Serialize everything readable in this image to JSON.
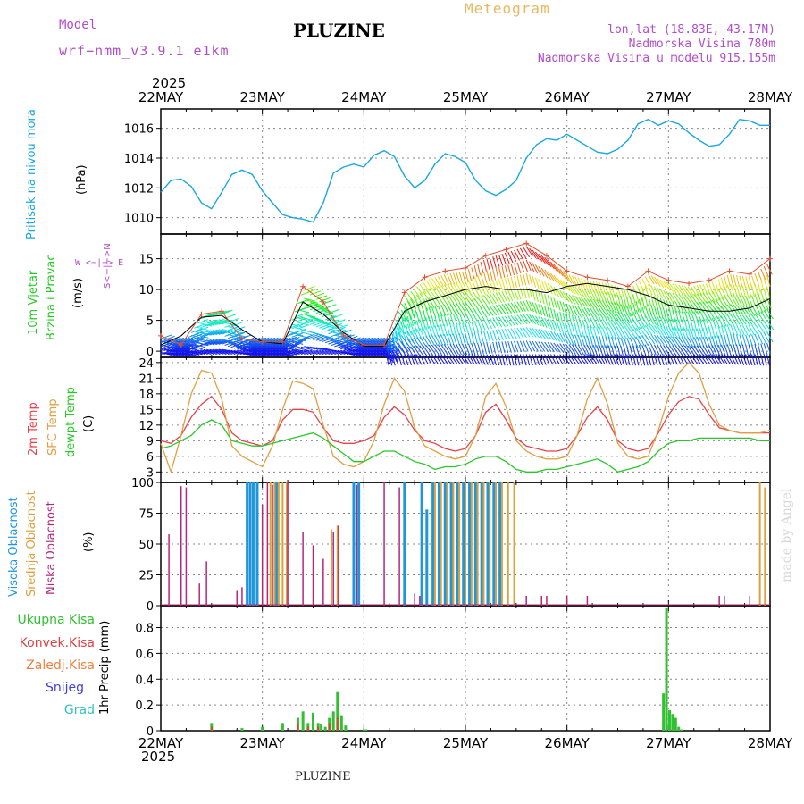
{
  "header": {
    "model_label": "Model",
    "model_name": "wrf−nmm_v3.9.1  e1km",
    "title": "PLUZINE",
    "meteogram_label": "Meteogram",
    "location": "lon,lat (18.83E, 43.17N)",
    "elevation": "Nadmorska Visina 780m",
    "model_elevation": "Nadmorska Visina u modelu 915.155m"
  },
  "axis": {
    "year_top": "2025",
    "year_bottom": "2025",
    "dates": [
      "22MAY",
      "23MAY",
      "24MAY",
      "25MAY",
      "26MAY",
      "27MAY",
      "28MAY"
    ]
  },
  "panels": {
    "pressure": {
      "label": "Pritisak na nivou mora",
      "unit": "(hPa)",
      "color": "#19a7e0"
    },
    "wind": {
      "label1": "10m Vjetar",
      "label2": "Brzina i Pravac",
      "unit": "(m/s)",
      "compass": "W <−|−> E",
      "compass2": "S<−|−>N"
    },
    "temp": {
      "label_2m": "2m Temp",
      "label_sfc": "SFC Temp",
      "label_dew": "dewpt Temp",
      "unit": "(C)"
    },
    "cloud": {
      "label_high": "Visoka Oblacnost",
      "label_mid": "Srednja Oblacnost",
      "label_low": "Niska Oblacnost",
      "unit": "(%)"
    },
    "precip": {
      "legend": [
        "Ukupna Kisa",
        "Konvek.Kisa",
        "Zaledj.Kisa",
        "Snijeg",
        "Grad"
      ],
      "unit": "1hr Precip (mm)"
    }
  },
  "footer": "PLUZINE",
  "made_by": "made by Angel",
  "colors": {
    "pressure": "#19a7e0",
    "temp_2m": "#e8404a",
    "temp_sfc": "#e0a040",
    "temp_dew": "#28c828",
    "cloud_high": "#1e96dc",
    "cloud_mid": "#dca03c",
    "cloud_low": "#b4287c",
    "precip_total": "#30c030",
    "precip_conv": "#e04040",
    "precip_frz": "#f08040",
    "snow": "#4040e0",
    "hail": "#30c0c0"
  },
  "chart_data": [
    {
      "type": "line",
      "name_panel": "pressure",
      "ylabel": "Pritisak na nivou mora (hPa)",
      "ylim": [
        1008.9,
        1017.3
      ],
      "yticks": [
        1010,
        1012,
        1014,
        1016
      ],
      "x_days": [
        0,
        0.1,
        0.2,
        0.3,
        0.4,
        0.5,
        0.6,
        0.7,
        0.8,
        0.9,
        1.0,
        1.1,
        1.2,
        1.3,
        1.4,
        1.5,
        1.6,
        1.7,
        1.8,
        1.9,
        2.0,
        2.1,
        2.2,
        2.3,
        2.4,
        2.5,
        2.6,
        2.7,
        2.8,
        2.9,
        3.0,
        3.1,
        3.2,
        3.3,
        3.4,
        3.5,
        3.6,
        3.7,
        3.8,
        3.9,
        4.0,
        4.1,
        4.2,
        4.3,
        4.4,
        4.5,
        4.6,
        4.7,
        4.8,
        4.9,
        5.0,
        5.1,
        5.2,
        5.3,
        5.4,
        5.5,
        5.6,
        5.7,
        5.8,
        5.9,
        6.0
      ],
      "values": [
        1011.7,
        1012.5,
        1012.6,
        1012.1,
        1011.0,
        1010.6,
        1011.7,
        1012.9,
        1013.2,
        1012.9,
        1011.8,
        1011.0,
        1010.2,
        1010.0,
        1009.9,
        1009.7,
        1011.0,
        1013.0,
        1013.4,
        1013.6,
        1013.4,
        1014.2,
        1014.5,
        1014.1,
        1012.8,
        1012.0,
        1012.5,
        1013.6,
        1014.3,
        1014.1,
        1013.7,
        1012.5,
        1011.8,
        1011.5,
        1011.9,
        1012.5,
        1014.0,
        1014.9,
        1015.3,
        1015.2,
        1015.6,
        1015.2,
        1014.8,
        1014.4,
        1014.3,
        1014.6,
        1015.2,
        1016.3,
        1016.6,
        1016.2,
        1016.5,
        1016.3,
        1015.7,
        1015.2,
        1014.8,
        1014.9,
        1015.6,
        1016.6,
        1016.5,
        1016.2,
        1016.2
      ]
    },
    {
      "type": "line",
      "name_panel": "wind",
      "ylabel": "10m Vjetar Brzina i Pravac (m/s)",
      "ylim": [
        -1,
        19
      ],
      "yticks": [
        0,
        5,
        10,
        15
      ],
      "x_days": [
        0,
        0.2,
        0.4,
        0.6,
        0.8,
        1.0,
        1.2,
        1.4,
        1.6,
        1.8,
        2.0,
        2.2,
        2.4,
        2.6,
        2.8,
        3.0,
        3.2,
        3.4,
        3.6,
        3.8,
        4.0,
        4.2,
        4.4,
        4.6,
        4.8,
        5.0,
        5.2,
        5.4,
        5.6,
        5.8,
        6.0
      ],
      "speed": [
        1.0,
        2.5,
        5.5,
        5.8,
        3.5,
        1.5,
        1.2,
        8.0,
        6.0,
        3.0,
        0.8,
        0.8,
        6.5,
        8.0,
        9.0,
        10.0,
        10.5,
        10.0,
        10.0,
        9.5,
        10.5,
        11.0,
        10.5,
        10.0,
        9.0,
        7.5,
        7.0,
        6.5,
        6.5,
        7.0,
        8.5
      ],
      "gust": [
        2.5,
        1.0,
        6.0,
        6.5,
        2.0,
        1.5,
        1.5,
        10.5,
        8.0,
        2.5,
        1.0,
        1.0,
        9.5,
        12.0,
        13.0,
        13.5,
        15.5,
        16.5,
        17.5,
        15.5,
        13.0,
        12.0,
        11.5,
        10.5,
        13.0,
        11.5,
        11.0,
        11.5,
        13.0,
        12.5,
        15.0
      ]
    },
    {
      "type": "line",
      "name_panel": "temp",
      "ylabel": "Temp (C)",
      "ylim": [
        1,
        25
      ],
      "yticks": [
        3,
        6,
        9,
        12,
        15,
        18,
        21,
        24
      ],
      "x_days": [
        0,
        0.1,
        0.2,
        0.3,
        0.4,
        0.5,
        0.6,
        0.7,
        0.8,
        0.9,
        1.0,
        1.1,
        1.2,
        1.3,
        1.4,
        1.5,
        1.6,
        1.7,
        1.8,
        1.9,
        2.0,
        2.1,
        2.2,
        2.3,
        2.4,
        2.5,
        2.6,
        2.7,
        2.8,
        2.9,
        3.0,
        3.1,
        3.2,
        3.3,
        3.4,
        3.5,
        3.6,
        3.7,
        3.8,
        3.9,
        4.0,
        4.1,
        4.2,
        4.3,
        4.4,
        4.5,
        4.6,
        4.7,
        4.8,
        4.9,
        5.0,
        5.1,
        5.2,
        5.3,
        5.4,
        5.5,
        5.6,
        5.7,
        5.8,
        5.9,
        6.0
      ],
      "series": [
        {
          "name": "2m Temp",
          "values": [
            9.0,
            8.5,
            10.0,
            13.5,
            16.0,
            17.5,
            15.0,
            10.5,
            9.0,
            8.5,
            8.0,
            9.0,
            13.0,
            15.0,
            15.0,
            14.5,
            11.5,
            9.0,
            8.5,
            8.5,
            9.0,
            10.0,
            13.5,
            15.5,
            14.0,
            11.0,
            9.0,
            8.5,
            7.5,
            7.0,
            7.5,
            10.0,
            14.5,
            16.0,
            13.0,
            9.5,
            8.0,
            7.5,
            7.0,
            7.0,
            7.5,
            10.0,
            13.5,
            15.5,
            13.0,
            9.0,
            7.5,
            7.0,
            7.5,
            10.5,
            14.0,
            16.5,
            17.5,
            17.0,
            14.0,
            11.5,
            11.0,
            10.5,
            10.5,
            10.5,
            10.5
          ]
        },
        {
          "name": "SFC Temp",
          "values": [
            8.5,
            3.0,
            10.0,
            18.0,
            22.5,
            22.0,
            17.0,
            8.0,
            6.0,
            5.0,
            4.0,
            8.0,
            15.0,
            20.5,
            20.0,
            19.0,
            12.0,
            6.0,
            4.5,
            4.0,
            5.0,
            9.0,
            16.0,
            21.0,
            18.5,
            11.5,
            8.0,
            7.0,
            6.0,
            5.5,
            6.0,
            10.0,
            17.5,
            20.0,
            15.5,
            9.0,
            7.0,
            6.0,
            5.5,
            5.5,
            6.0,
            10.0,
            17.0,
            21.0,
            16.0,
            8.5,
            6.0,
            5.5,
            6.0,
            11.0,
            17.5,
            22.0,
            24.0,
            22.0,
            16.0,
            12.0,
            11.0,
            10.5,
            10.5,
            10.5,
            11.0
          ]
        },
        {
          "name": "dewpt Temp",
          "values": [
            7.5,
            8.0,
            9.0,
            10.0,
            12.0,
            13.0,
            12.0,
            9.0,
            8.5,
            8.0,
            8.0,
            8.5,
            9.0,
            9.5,
            10.0,
            10.5,
            9.5,
            8.0,
            6.5,
            5.0,
            5.0,
            6.0,
            7.0,
            7.0,
            6.0,
            5.0,
            4.5,
            3.5,
            4.0,
            4.0,
            4.5,
            5.5,
            6.0,
            6.0,
            5.0,
            3.5,
            3.0,
            3.0,
            3.5,
            3.5,
            4.0,
            4.5,
            5.0,
            5.5,
            4.5,
            3.0,
            3.5,
            4.0,
            5.0,
            7.0,
            8.5,
            9.0,
            9.0,
            9.5,
            9.5,
            9.5,
            9.5,
            9.5,
            9.5,
            9.0,
            9.0
          ]
        }
      ]
    },
    {
      "type": "bar",
      "name_panel": "cloud",
      "ylabel": "Oblacnost (%)",
      "ylim": [
        0,
        100
      ],
      "yticks": [
        0,
        25,
        50,
        75,
        100
      ],
      "series": [
        {
          "name": "Visoka Oblacnost",
          "x_days": [
            0.85,
            0.88,
            0.91,
            0.95,
            1.14,
            1.9,
            1.95,
            2.4,
            2.57,
            2.62,
            2.68,
            2.74,
            2.8,
            2.86,
            2.92,
            2.98,
            3.04,
            3.1,
            3.16,
            3.22,
            3.28,
            3.34
          ],
          "values": [
            100,
            100,
            100,
            100,
            100,
            100,
            100,
            100,
            100,
            78,
            100,
            100,
            100,
            100,
            100,
            100,
            100,
            100,
            100,
            100,
            100,
            100
          ]
        },
        {
          "name": "Srednja Oblacnost",
          "x_days": [
            1.08,
            1.12,
            1.16,
            1.2,
            1.24,
            1.68,
            1.74,
            2.7,
            2.76,
            2.82,
            2.88,
            2.94,
            3.0,
            3.06,
            3.12,
            3.18,
            3.24,
            3.3,
            3.36,
            3.42,
            3.48,
            5.9,
            5.95
          ],
          "values": [
            100,
            100,
            100,
            100,
            100,
            62,
            65,
            100,
            100,
            100,
            100,
            100,
            100,
            100,
            100,
            100,
            100,
            100,
            100,
            100,
            100,
            100,
            96
          ]
        },
        {
          "name": "Niska Oblacnost",
          "x_days": [
            0.08,
            0.2,
            0.25,
            0.38,
            0.45,
            0.75,
            0.8,
            1.0,
            1.05,
            1.1,
            1.25,
            1.4,
            1.5,
            1.6,
            1.7,
            1.75,
            1.93,
            2.2,
            2.35,
            2.5,
            2.55,
            3.6,
            3.75,
            3.8,
            4.0,
            4.2,
            5.5,
            5.55,
            5.8
          ],
          "values": [
            58,
            97,
            96,
            18,
            36,
            12,
            15,
            82,
            100,
            98,
            100,
            60,
            49,
            38,
            60,
            65,
            98,
            100,
            96,
            10,
            8,
            8,
            8,
            8,
            8,
            8,
            8,
            8,
            8
          ]
        }
      ]
    },
    {
      "type": "bar",
      "name_panel": "precip",
      "ylabel": "1hr Precip (mm)",
      "ylim": [
        0,
        0.97
      ],
      "yticks": [
        0,
        0.2,
        0.4,
        0.6,
        0.8
      ],
      "series": [
        {
          "name": "Ukupna Kisa",
          "x_days": [
            0.5,
            0.8,
            1.0,
            1.2,
            1.35,
            1.4,
            1.45,
            1.5,
            1.55,
            1.58,
            1.62,
            1.66,
            1.7,
            1.74,
            1.78,
            1.82,
            2.0,
            2.02,
            4.95,
            4.98,
            5.01,
            5.04,
            5.07,
            5.1,
            5.13
          ],
          "values": [
            0.06,
            0.02,
            0.03,
            0.06,
            0.1,
            0.15,
            0.06,
            0.14,
            0.06,
            0.05,
            0.03,
            0.1,
            0.15,
            0.3,
            0.12,
            0.04,
            0.01,
            0.01,
            0.29,
            0.95,
            0.16,
            0.13,
            0.1,
            0.03,
            0.01
          ]
        },
        {
          "name": "Konvek.Kisa",
          "x_days": [
            0.5,
            1.35,
            1.45,
            1.55,
            1.66,
            1.74
          ],
          "values": [
            0.03,
            0.05,
            0.03,
            0.03,
            0.06,
            0.1
          ]
        }
      ]
    }
  ]
}
